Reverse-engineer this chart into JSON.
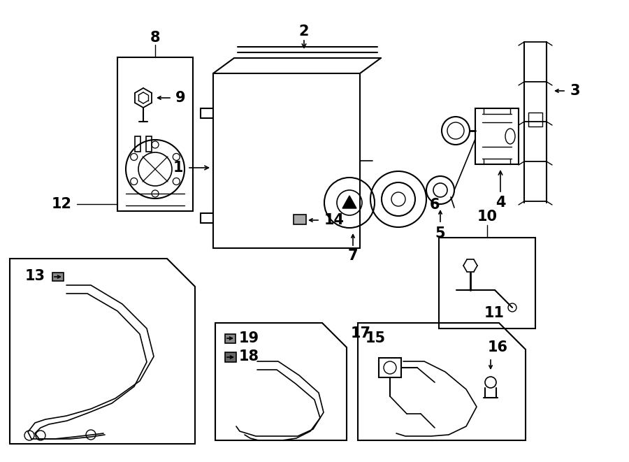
{
  "bg_color": "#ffffff",
  "lc": "#000000",
  "fig_w": 9.0,
  "fig_h": 6.61,
  "dpi": 100
}
